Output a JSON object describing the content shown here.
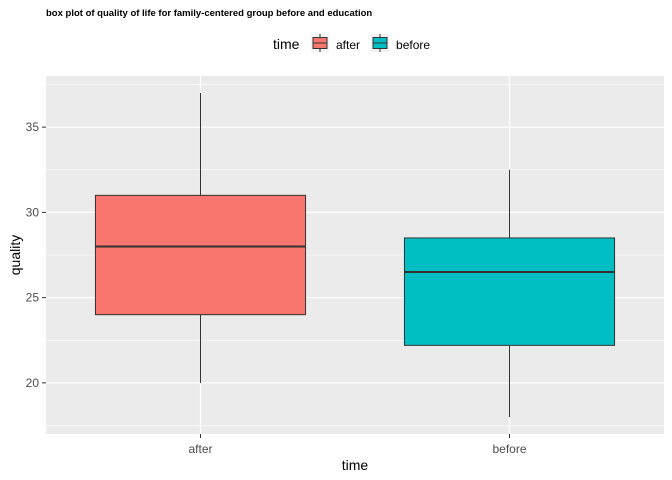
{
  "chart_data": {
    "type": "box",
    "title": "box plot of quality of life for family-centered group before and education",
    "xlabel": "time",
    "ylabel": "quality",
    "categories": [
      "after",
      "before"
    ],
    "ylim": [
      17,
      38
    ],
    "yticks": [
      20,
      25,
      30,
      35
    ],
    "grid": true,
    "legend": {
      "title": "time",
      "placement": "top"
    },
    "series": [
      {
        "name": "after",
        "color": "#F8766D",
        "min": 20,
        "q1": 24,
        "median": 28,
        "q3": 31,
        "max": 37
      },
      {
        "name": "before",
        "color": "#00BFC4",
        "min": 18,
        "q1": 22.2,
        "median": 26.5,
        "q3": 28.5,
        "max": 32.5
      }
    ]
  }
}
